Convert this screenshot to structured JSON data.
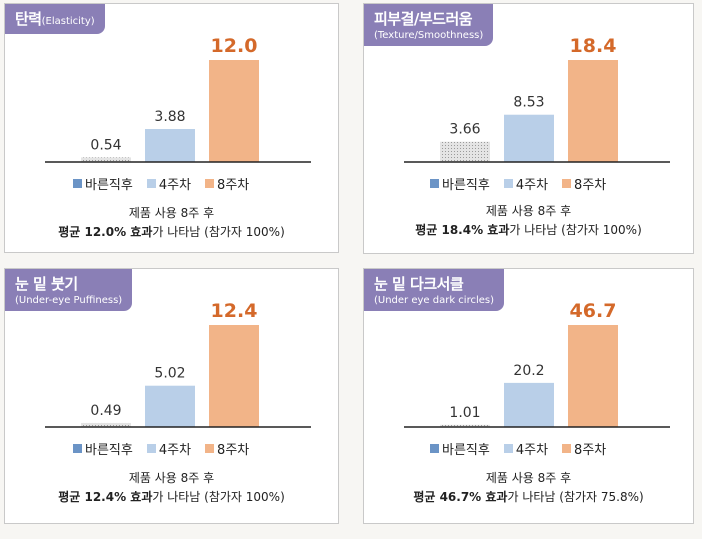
{
  "colors": {
    "title_bg": "#8a7fb6",
    "bar_before": "#d0d0d0",
    "bar_4w": "#b9cfe8",
    "bar_8w": "#f2b488",
    "label_8w": "#d4692a",
    "legend_before": "#6b94c6",
    "legend_4w": "#b9cfe8",
    "legend_8w": "#f2b488"
  },
  "legend": [
    "바른직후",
    "4주차",
    "8주차"
  ],
  "chart_data": [
    {
      "type": "bar",
      "title": "탄력",
      "subtitle": "(Elasticity)",
      "categories": [
        "바른직후",
        "4주차",
        "8주차"
      ],
      "values": [
        0.54,
        3.88,
        12.0
      ],
      "value_labels": [
        "0.54",
        "3.88",
        "12.0"
      ],
      "caption_line1": "제품 사용 8주 후",
      "caption_bold": "평균 12.0% 효과",
      "caption_rest": "가 나타남 (참가자 100%)"
    },
    {
      "type": "bar",
      "title": "피부결/부드러움",
      "subtitle": "(Texture/Smoothness)",
      "categories": [
        "바른직후",
        "4주차",
        "8주차"
      ],
      "values": [
        3.66,
        8.53,
        18.4
      ],
      "value_labels": [
        "3.66",
        "8.53",
        "18.4"
      ],
      "caption_line1": "제품 사용 8주 후",
      "caption_bold": "평균 18.4% 효과",
      "caption_rest": "가 나타남 (참가자 100%)"
    },
    {
      "type": "bar",
      "title": "눈 밑 붓기",
      "subtitle": "(Under-eye Puffiness)",
      "categories": [
        "바른직후",
        "4주차",
        "8주차"
      ],
      "values": [
        0.49,
        5.02,
        12.4
      ],
      "value_labels": [
        "0.49",
        "5.02",
        "12.4"
      ],
      "caption_line1": "제품 사용 8주 후",
      "caption_bold": "평균 12.4% 효과",
      "caption_rest": "가 나타남 (참가자 100%)"
    },
    {
      "type": "bar",
      "title": "눈 밑 다크서클",
      "subtitle": "(Under eye dark circles)",
      "categories": [
        "바른직후",
        "4주차",
        "8주차"
      ],
      "values": [
        1.01,
        20.2,
        46.7
      ],
      "value_labels": [
        "1.01",
        "20.2",
        "46.7"
      ],
      "caption_line1": "제품 사용 8주 후",
      "caption_bold": "평균 46.7% 효과",
      "caption_rest": "가 나타남 (참가자 75.8%)"
    }
  ]
}
